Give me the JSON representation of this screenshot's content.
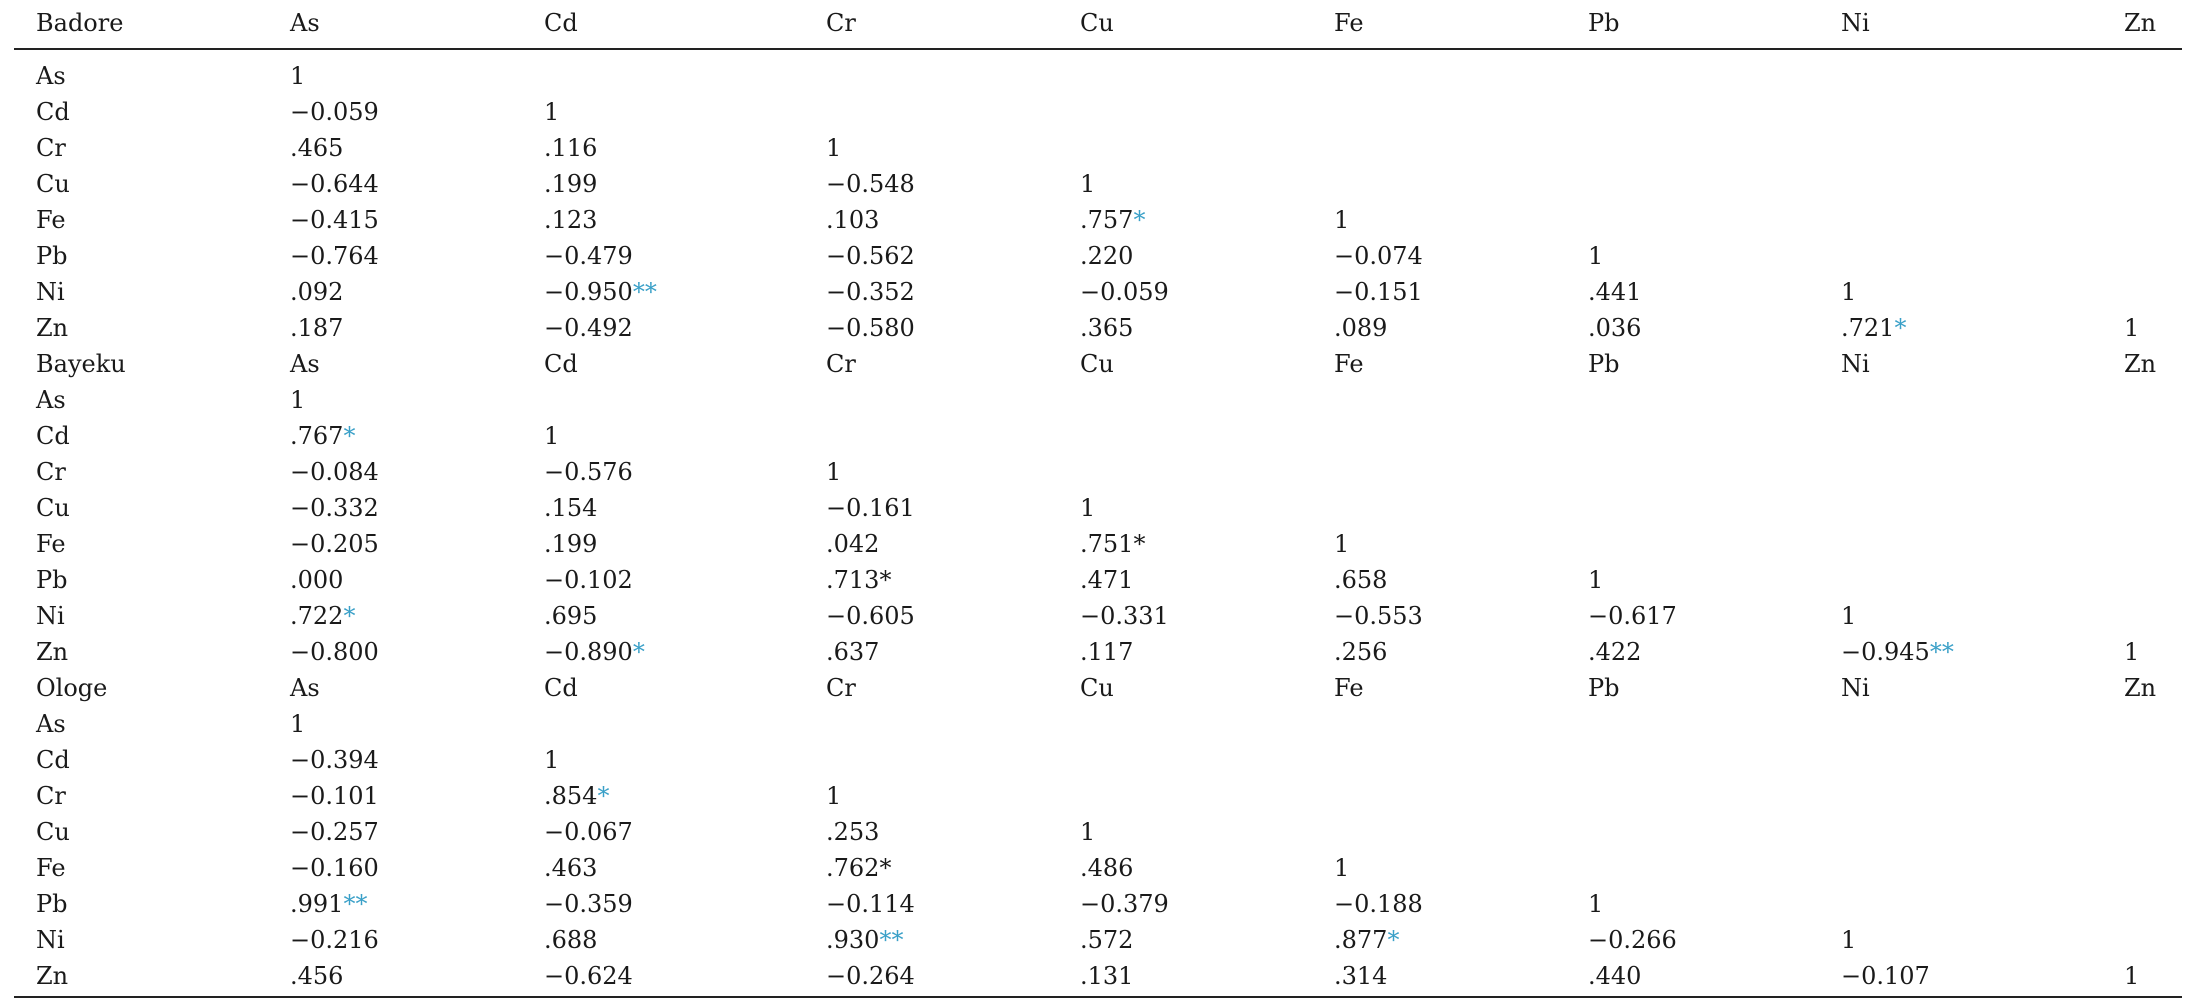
{
  "table": {
    "header": [
      "Badore",
      "As",
      "Cd",
      "Cr",
      "Cu",
      "Fe",
      "Pb",
      "Ni",
      "Zn"
    ],
    "rows": [
      [
        [
          "As"
        ],
        [
          "1"
        ],
        [
          ""
        ],
        [
          ""
        ],
        [
          ""
        ],
        [
          ""
        ],
        [
          ""
        ],
        [
          ""
        ],
        [
          ""
        ]
      ],
      [
        [
          "Cd"
        ],
        [
          "−0.059"
        ],
        [
          "1"
        ],
        [
          ""
        ],
        [
          ""
        ],
        [
          ""
        ],
        [
          ""
        ],
        [
          ""
        ],
        [
          ""
        ]
      ],
      [
        [
          "Cr"
        ],
        [
          ".465"
        ],
        [
          ".116"
        ],
        [
          "1"
        ],
        [
          ""
        ],
        [
          ""
        ],
        [
          ""
        ],
        [
          ""
        ],
        [
          ""
        ]
      ],
      [
        [
          "Cu"
        ],
        [
          "−0.644"
        ],
        [
          ".199"
        ],
        [
          "−0.548"
        ],
        [
          "1"
        ],
        [
          ""
        ],
        [
          ""
        ],
        [
          ""
        ],
        [
          ""
        ]
      ],
      [
        [
          "Fe"
        ],
        [
          "−0.415"
        ],
        [
          ".123"
        ],
        [
          ".103"
        ],
        [
          ".757",
          "*"
        ],
        [
          "1"
        ],
        [
          ""
        ],
        [
          ""
        ],
        [
          ""
        ]
      ],
      [
        [
          "Pb"
        ],
        [
          "−0.764"
        ],
        [
          "−0.479"
        ],
        [
          "−0.562"
        ],
        [
          ".220"
        ],
        [
          "−0.074"
        ],
        [
          "1"
        ],
        [
          ""
        ],
        [
          ""
        ]
      ],
      [
        [
          "Ni"
        ],
        [
          ".092"
        ],
        [
          "−0.950",
          "**"
        ],
        [
          "−0.352"
        ],
        [
          "−0.059"
        ],
        [
          "−0.151"
        ],
        [
          ".441"
        ],
        [
          "1"
        ],
        [
          ""
        ]
      ],
      [
        [
          "Zn"
        ],
        [
          ".187"
        ],
        [
          "−0.492"
        ],
        [
          "−0.580"
        ],
        [
          ".365"
        ],
        [
          ".089"
        ],
        [
          ".036"
        ],
        [
          ".721",
          "*"
        ],
        [
          "1"
        ]
      ],
      [
        [
          "Bayeku"
        ],
        [
          "As"
        ],
        [
          "Cd"
        ],
        [
          "Cr"
        ],
        [
          "Cu"
        ],
        [
          "Fe"
        ],
        [
          "Pb"
        ],
        [
          "Ni"
        ],
        [
          "Zn"
        ]
      ],
      [
        [
          "As"
        ],
        [
          "1"
        ],
        [
          ""
        ],
        [
          ""
        ],
        [
          ""
        ],
        [
          ""
        ],
        [
          ""
        ],
        [
          ""
        ],
        [
          ""
        ]
      ],
      [
        [
          "Cd"
        ],
        [
          ".767",
          "*"
        ],
        [
          "1"
        ],
        [
          ""
        ],
        [
          ""
        ],
        [
          ""
        ],
        [
          ""
        ],
        [
          ""
        ],
        [
          ""
        ]
      ],
      [
        [
          "Cr"
        ],
        [
          "−0.084"
        ],
        [
          "−0.576"
        ],
        [
          "1"
        ],
        [
          ""
        ],
        [
          ""
        ],
        [
          ""
        ],
        [
          ""
        ],
        [
          ""
        ]
      ],
      [
        [
          "Cu"
        ],
        [
          "−0.332"
        ],
        [
          ".154"
        ],
        [
          "−0.161"
        ],
        [
          "1"
        ],
        [
          ""
        ],
        [
          ""
        ],
        [
          ""
        ],
        [
          ""
        ]
      ],
      [
        [
          "Fe"
        ],
        [
          "−0.205"
        ],
        [
          ".199"
        ],
        [
          ".042"
        ],
        [
          ".751*"
        ],
        [
          "1"
        ],
        [
          ""
        ],
        [
          ""
        ],
        [
          ""
        ]
      ],
      [
        [
          "Pb"
        ],
        [
          ".000"
        ],
        [
          "−0.102"
        ],
        [
          ".713*"
        ],
        [
          ".471"
        ],
        [
          ".658"
        ],
        [
          "1"
        ],
        [
          ""
        ],
        [
          ""
        ]
      ],
      [
        [
          "Ni"
        ],
        [
          ".722",
          "*"
        ],
        [
          ".695"
        ],
        [
          "−0.605"
        ],
        [
          "−0.331"
        ],
        [
          "−0.553"
        ],
        [
          "−0.617"
        ],
        [
          "1"
        ],
        [
          ""
        ]
      ],
      [
        [
          "Zn"
        ],
        [
          "−0.800"
        ],
        [
          "−0.890",
          "*"
        ],
        [
          ".637"
        ],
        [
          ".117"
        ],
        [
          ".256"
        ],
        [
          ".422"
        ],
        [
          "−0.945",
          "**"
        ],
        [
          "1"
        ]
      ],
      [
        [
          "Ologe"
        ],
        [
          "As"
        ],
        [
          "Cd"
        ],
        [
          "Cr"
        ],
        [
          "Cu"
        ],
        [
          "Fe"
        ],
        [
          "Pb"
        ],
        [
          "Ni"
        ],
        [
          "Zn"
        ]
      ],
      [
        [
          "As"
        ],
        [
          "1"
        ],
        [
          ""
        ],
        [
          ""
        ],
        [
          ""
        ],
        [
          ""
        ],
        [
          ""
        ],
        [
          ""
        ],
        [
          ""
        ]
      ],
      [
        [
          "Cd"
        ],
        [
          "−0.394"
        ],
        [
          "1"
        ],
        [
          ""
        ],
        [
          ""
        ],
        [
          ""
        ],
        [
          ""
        ],
        [
          ""
        ],
        [
          ""
        ]
      ],
      [
        [
          "Cr"
        ],
        [
          "−0.101"
        ],
        [
          ".854",
          "*"
        ],
        [
          "1"
        ],
        [
          ""
        ],
        [
          ""
        ],
        [
          ""
        ],
        [
          ""
        ],
        [
          ""
        ]
      ],
      [
        [
          "Cu"
        ],
        [
          "−0.257"
        ],
        [
          "−0.067"
        ],
        [
          ".253"
        ],
        [
          "1"
        ],
        [
          ""
        ],
        [
          ""
        ],
        [
          ""
        ],
        [
          ""
        ]
      ],
      [
        [
          "Fe"
        ],
        [
          "−0.160"
        ],
        [
          ".463"
        ],
        [
          ".762*"
        ],
        [
          ".486"
        ],
        [
          "1"
        ],
        [
          ""
        ],
        [
          ""
        ],
        [
          ""
        ]
      ],
      [
        [
          "Pb"
        ],
        [
          ".991",
          "**"
        ],
        [
          "−0.359"
        ],
        [
          "−0.114"
        ],
        [
          "−0.379"
        ],
        [
          "−0.188"
        ],
        [
          "1"
        ],
        [
          ""
        ],
        [
          ""
        ]
      ],
      [
        [
          "Ni"
        ],
        [
          "−0.216"
        ],
        [
          ".688"
        ],
        [
          ".930",
          "**"
        ],
        [
          ".572"
        ],
        [
          ".877",
          "*"
        ],
        [
          "−0.266"
        ],
        [
          "1"
        ],
        [
          ""
        ]
      ],
      [
        [
          "Zn"
        ],
        [
          ".456"
        ],
        [
          "−0.624"
        ],
        [
          "−0.264"
        ],
        [
          ".131"
        ],
        [
          ".314"
        ],
        [
          ".440"
        ],
        [
          "−0.107"
        ],
        [
          "1"
        ]
      ]
    ]
  },
  "colors": {
    "text": "#1a1a1a",
    "significance_marker": "#3aa0c8",
    "rule": "#222222"
  }
}
